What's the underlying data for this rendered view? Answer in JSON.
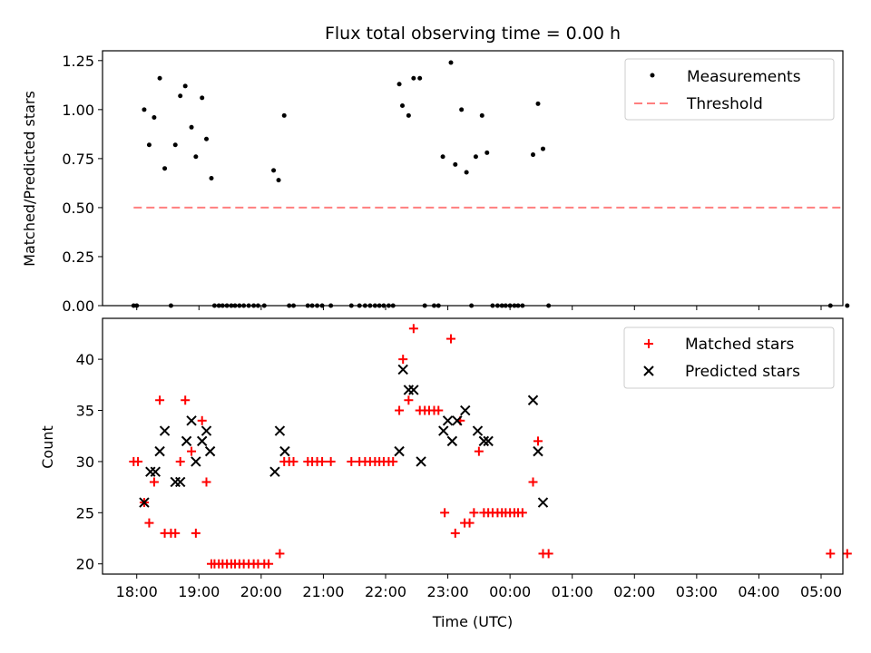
{
  "colors": {
    "measurement": "#000000",
    "threshold": "#ff7f7f",
    "matched": "#ff0000",
    "predicted": "#000000"
  },
  "time_ticks": [
    "18:00",
    "19:00",
    "20:00",
    "21:00",
    "22:00",
    "23:00",
    "00:00",
    "01:00",
    "02:00",
    "03:00",
    "04:00",
    "05:00"
  ],
  "chart_data": [
    {
      "type": "scatter",
      "title": "Flux total observing time = 0.00 h",
      "xlabel": "",
      "ylabel": "Matched/Predicted stars",
      "xlim": [
        17.45,
        29.35
      ],
      "ylim": [
        0.0,
        1.3
      ],
      "yticks": [
        "0.00",
        "0.25",
        "0.50",
        "0.75",
        "1.00",
        "1.25"
      ],
      "legend_position": "upper right",
      "legend": [
        "Measurements",
        "Threshold"
      ],
      "series": [
        {
          "name": "Measurements",
          "x": [
            17.95,
            18.0,
            18.12,
            18.2,
            18.28,
            18.37,
            18.45,
            18.55,
            18.62,
            18.7,
            18.78,
            18.88,
            18.95,
            19.05,
            19.12,
            19.2,
            19.25,
            19.32,
            19.38,
            19.45,
            19.52,
            19.58,
            19.65,
            19.72,
            19.8,
            19.88,
            19.95,
            20.05,
            20.2,
            20.28,
            20.37,
            20.45,
            20.52,
            20.75,
            20.82,
            20.9,
            20.98,
            21.12,
            21.45,
            21.58,
            21.67,
            21.75,
            21.83,
            21.9,
            21.97,
            22.05,
            22.12,
            22.22,
            22.27,
            22.37,
            22.45,
            22.55,
            22.63,
            22.78,
            22.85,
            22.92,
            23.05,
            23.12,
            23.22,
            23.3,
            23.38,
            23.45,
            23.55,
            23.63,
            23.72,
            23.8,
            23.87,
            23.93,
            24.0,
            24.07,
            24.13,
            24.2,
            24.37,
            24.45,
            24.53,
            24.62,
            29.15,
            29.42
          ],
          "y": [
            0,
            0,
            1.0,
            0.82,
            0.96,
            1.16,
            0.7,
            0,
            0.82,
            1.07,
            1.12,
            0.91,
            0.76,
            1.06,
            0.85,
            0.65,
            0,
            0,
            0,
            0,
            0,
            0,
            0,
            0,
            0,
            0,
            0,
            0,
            0.69,
            0.64,
            0.97,
            0,
            0,
            0,
            0,
            0,
            0,
            0,
            0,
            0,
            0,
            0,
            0,
            0,
            0,
            0,
            0,
            1.13,
            1.02,
            0.97,
            1.16,
            1.16,
            0,
            0,
            0,
            0.76,
            1.24,
            0.72,
            1.0,
            0.68,
            0,
            0.76,
            0.97,
            0.78,
            0,
            0,
            0,
            0,
            0,
            0,
            0,
            0,
            0.77,
            1.03,
            0.8,
            0,
            0,
            0
          ]
        },
        {
          "name": "Threshold",
          "style": "dashed",
          "x": [
            17.95,
            29.35
          ],
          "y": [
            0.5,
            0.5
          ]
        }
      ]
    },
    {
      "type": "scatter",
      "title": "",
      "xlabel": "Time (UTC)",
      "ylabel": "Count",
      "xlim": [
        17.45,
        29.35
      ],
      "ylim": [
        19.0,
        44.0
      ],
      "yticks": [
        "20",
        "25",
        "30",
        "35",
        "40"
      ],
      "legend_position": "upper right",
      "legend": [
        "Matched stars",
        "Predicted stars"
      ],
      "series": [
        {
          "name": "Matched stars",
          "marker": "+",
          "x": [
            17.95,
            18.02,
            18.12,
            18.2,
            18.28,
            18.37,
            18.45,
            18.55,
            18.62,
            18.7,
            18.78,
            18.88,
            18.95,
            19.05,
            19.12,
            19.2,
            19.25,
            19.32,
            19.38,
            19.45,
            19.52,
            19.58,
            19.65,
            19.72,
            19.8,
            19.88,
            19.95,
            20.05,
            20.12,
            20.3,
            20.37,
            20.45,
            20.52,
            20.75,
            20.82,
            20.9,
            20.98,
            21.12,
            21.45,
            21.58,
            21.67,
            21.75,
            21.83,
            21.9,
            21.97,
            22.05,
            22.12,
            22.22,
            22.28,
            22.37,
            22.45,
            22.55,
            22.63,
            22.7,
            22.78,
            22.85,
            22.95,
            23.05,
            23.12,
            23.2,
            23.27,
            23.35,
            23.42,
            23.5,
            23.58,
            23.65,
            23.72,
            23.8,
            23.87,
            23.93,
            24.0,
            24.07,
            24.13,
            24.2,
            24.37,
            24.45,
            24.53,
            24.62,
            29.15,
            29.42
          ],
          "y": [
            30,
            30,
            26,
            24,
            28,
            36,
            23,
            23,
            23,
            30,
            36,
            31,
            23,
            34,
            28,
            20,
            20,
            20,
            20,
            20,
            20,
            20,
            20,
            20,
            20,
            20,
            20,
            20,
            20,
            21,
            30,
            30,
            30,
            30,
            30,
            30,
            30,
            30,
            30,
            30,
            30,
            30,
            30,
            30,
            30,
            30,
            30,
            35,
            40,
            36,
            43,
            35,
            35,
            35,
            35,
            35,
            25,
            42,
            23,
            34,
            24,
            24,
            25,
            31,
            25,
            25,
            25,
            25,
            25,
            25,
            25,
            25,
            25,
            25,
            28,
            32,
            21,
            21,
            21,
            21
          ]
        },
        {
          "name": "Predicted stars",
          "marker": "x",
          "x": [
            18.12,
            18.22,
            18.3,
            18.37,
            18.45,
            18.62,
            18.7,
            18.8,
            18.88,
            18.95,
            19.05,
            19.12,
            19.18,
            20.22,
            20.3,
            20.38,
            22.22,
            22.28,
            22.37,
            22.45,
            22.57,
            22.93,
            23.0,
            23.07,
            23.15,
            23.28,
            23.48,
            23.58,
            23.65,
            24.37,
            24.45,
            24.53
          ],
          "y": [
            26,
            29,
            29,
            31,
            33,
            28,
            28,
            32,
            34,
            30,
            32,
            33,
            31,
            29,
            33,
            31,
            31,
            39,
            37,
            37,
            30,
            33,
            34,
            32,
            34,
            35,
            33,
            32,
            32,
            36,
            31,
            26
          ]
        }
      ]
    }
  ]
}
